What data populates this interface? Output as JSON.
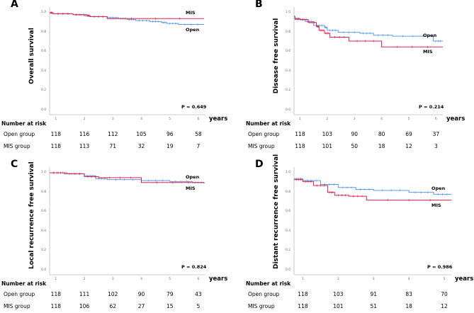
{
  "colors": {
    "open": "#5a9be6",
    "mis": "#e0204a",
    "axis": "#bbbbbb"
  },
  "risk_label": "Number at risk",
  "open_row": "Open group",
  "mis_row": "MIS group",
  "years_label": "years",
  "chart_data": [
    {
      "type": "line",
      "letter": "A",
      "ylabel": "Overall survival",
      "p_value": "P = 0.649",
      "xticks": [
        1,
        2,
        3,
        4,
        5,
        6
      ],
      "yticks": [
        "0.0",
        "0.2",
        "0.4",
        "0.6",
        "0.8",
        "1.0"
      ],
      "xlim": [
        0.78,
        6.25
      ],
      "ylim": [
        0,
        1
      ],
      "legend": {
        "top": "MIS",
        "bottom": "Open"
      },
      "top_series": "mis",
      "series": [
        {
          "name": "Open",
          "key": "open",
          "points": [
            [
              0.78,
              1
            ],
            [
              0.9,
              0.99
            ],
            [
              1.6,
              0.98
            ],
            [
              2,
              0.97
            ],
            [
              2.2,
              0.96
            ],
            [
              2.8,
              0.95
            ],
            [
              3.2,
              0.94
            ],
            [
              3.5,
              0.93
            ],
            [
              3.8,
              0.92
            ],
            [
              4.3,
              0.91
            ],
            [
              4.7,
              0.9
            ],
            [
              4.9,
              0.89
            ],
            [
              5.3,
              0.88
            ],
            [
              6.2,
              0.88
            ]
          ]
        },
        {
          "name": "MIS",
          "key": "mis",
          "points": [
            [
              0.78,
              1
            ],
            [
              0.9,
              0.99
            ],
            [
              1.6,
              0.98
            ],
            [
              2.1,
              0.97
            ],
            [
              2.2,
              0.96
            ],
            [
              2.8,
              0.94
            ],
            [
              6.2,
              0.94
            ]
          ]
        }
      ],
      "risk": {
        "open": [
          118,
          116,
          112,
          105,
          96,
          58
        ],
        "mis": [
          118,
          113,
          71,
          32,
          19,
          7
        ]
      }
    },
    {
      "type": "line",
      "letter": "B",
      "ylabel": "Disease free survival",
      "p_value": "P = 0.214",
      "xticks": [
        1,
        2,
        3,
        4,
        5,
        6
      ],
      "yticks": [
        "0.0",
        "0.2",
        "0.4",
        "0.6",
        "0.8",
        "1.0"
      ],
      "xlim": [
        0.78,
        6.25
      ],
      "ylim": [
        0,
        1
      ],
      "legend": {
        "top": "Open",
        "bottom": "MIS"
      },
      "top_series": "open",
      "series": [
        {
          "name": "Open",
          "key": "open",
          "points": [
            [
              0.78,
              0.96
            ],
            [
              0.82,
              0.93
            ],
            [
              1.2,
              0.91
            ],
            [
              1.5,
              0.87
            ],
            [
              1.9,
              0.85
            ],
            [
              2,
              0.82
            ],
            [
              2.4,
              0.8
            ],
            [
              3.2,
              0.79
            ],
            [
              3.7,
              0.77
            ],
            [
              4.4,
              0.76
            ],
            [
              5.9,
              0.71
            ],
            [
              6.25,
              0.71
            ]
          ]
        },
        {
          "name": "MIS",
          "key": "mis",
          "points": [
            [
              0.78,
              0.94
            ],
            [
              1,
              0.93
            ],
            [
              1.3,
              0.9
            ],
            [
              1.6,
              0.86
            ],
            [
              1.7,
              0.82
            ],
            [
              1.9,
              0.79
            ],
            [
              2.1,
              0.75
            ],
            [
              2.8,
              0.71
            ],
            [
              4,
              0.65
            ],
            [
              6.25,
              0.65
            ]
          ]
        }
      ],
      "risk": {
        "open": [
          118,
          103,
          90,
          80,
          69,
          37
        ],
        "mis": [
          118,
          101,
          50,
          18,
          12,
          3
        ]
      }
    },
    {
      "type": "line",
      "letter": "C",
      "ylabel": "Local recurrence free survival",
      "p_value": "P = 0.824",
      "xticks": [
        1,
        2,
        3,
        4,
        5,
        6
      ],
      "yticks": [
        "0.0",
        "0.2",
        "0.4",
        "0.6",
        "0.8",
        "1.0"
      ],
      "xlim": [
        0.78,
        6.25
      ],
      "ylim": [
        0,
        1
      ],
      "legend": {
        "top": "Open",
        "bottom": "MIS"
      },
      "top_series": "open",
      "series": [
        {
          "name": "Open",
          "key": "open",
          "points": [
            [
              0.78,
              1
            ],
            [
              1.4,
              0.99
            ],
            [
              2,
              0.97
            ],
            [
              2.4,
              0.94
            ],
            [
              2.8,
              0.93
            ],
            [
              4,
              0.92
            ],
            [
              5,
              0.91
            ],
            [
              5.8,
              0.9
            ],
            [
              6.2,
              0.9
            ]
          ]
        },
        {
          "name": "MIS",
          "key": "mis",
          "points": [
            [
              0.78,
              1
            ],
            [
              1.3,
              0.99
            ],
            [
              2,
              0.96
            ],
            [
              2.5,
              0.95
            ],
            [
              4,
              0.9
            ],
            [
              6.2,
              0.89
            ]
          ]
        }
      ],
      "risk": {
        "open": [
          118,
          111,
          102,
          90,
          79,
          43
        ],
        "mis": [
          118,
          106,
          62,
          27,
          15,
          5
        ]
      }
    },
    {
      "type": "line",
      "letter": "D",
      "ylabel": "Distant recurrence free survival",
      "p_value": "P = 0.986",
      "xticks": [
        1,
        2,
        3,
        4,
        5
      ],
      "yticks": [
        "0.0",
        "0.2",
        "0.4",
        "0.6",
        "0.8",
        "1.0"
      ],
      "xlim": [
        0.75,
        5.2
      ],
      "ylim": [
        0,
        1
      ],
      "legend": {
        "top": "Open",
        "bottom": "MIS"
      },
      "top_series": "open",
      "series": [
        {
          "name": "Open",
          "key": "open",
          "points": [
            [
              0.75,
              0.94
            ],
            [
              1,
              0.92
            ],
            [
              1.5,
              0.88
            ],
            [
              2,
              0.85
            ],
            [
              2.5,
              0.83
            ],
            [
              3,
              0.82
            ],
            [
              4,
              0.8
            ],
            [
              4.7,
              0.78
            ],
            [
              5.2,
              0.78
            ]
          ]
        },
        {
          "name": "MIS",
          "key": "mis",
          "points": [
            [
              0.75,
              0.93
            ],
            [
              1,
              0.91
            ],
            [
              1.3,
              0.87
            ],
            [
              1.7,
              0.8
            ],
            [
              1.9,
              0.77
            ],
            [
              2.3,
              0.76
            ],
            [
              2.8,
              0.72
            ],
            [
              5.2,
              0.72
            ]
          ]
        }
      ],
      "risk": {
        "open": [
          118,
          103,
          91,
          83,
          70
        ],
        "mis": [
          118,
          101,
          51,
          18,
          12
        ]
      }
    }
  ]
}
